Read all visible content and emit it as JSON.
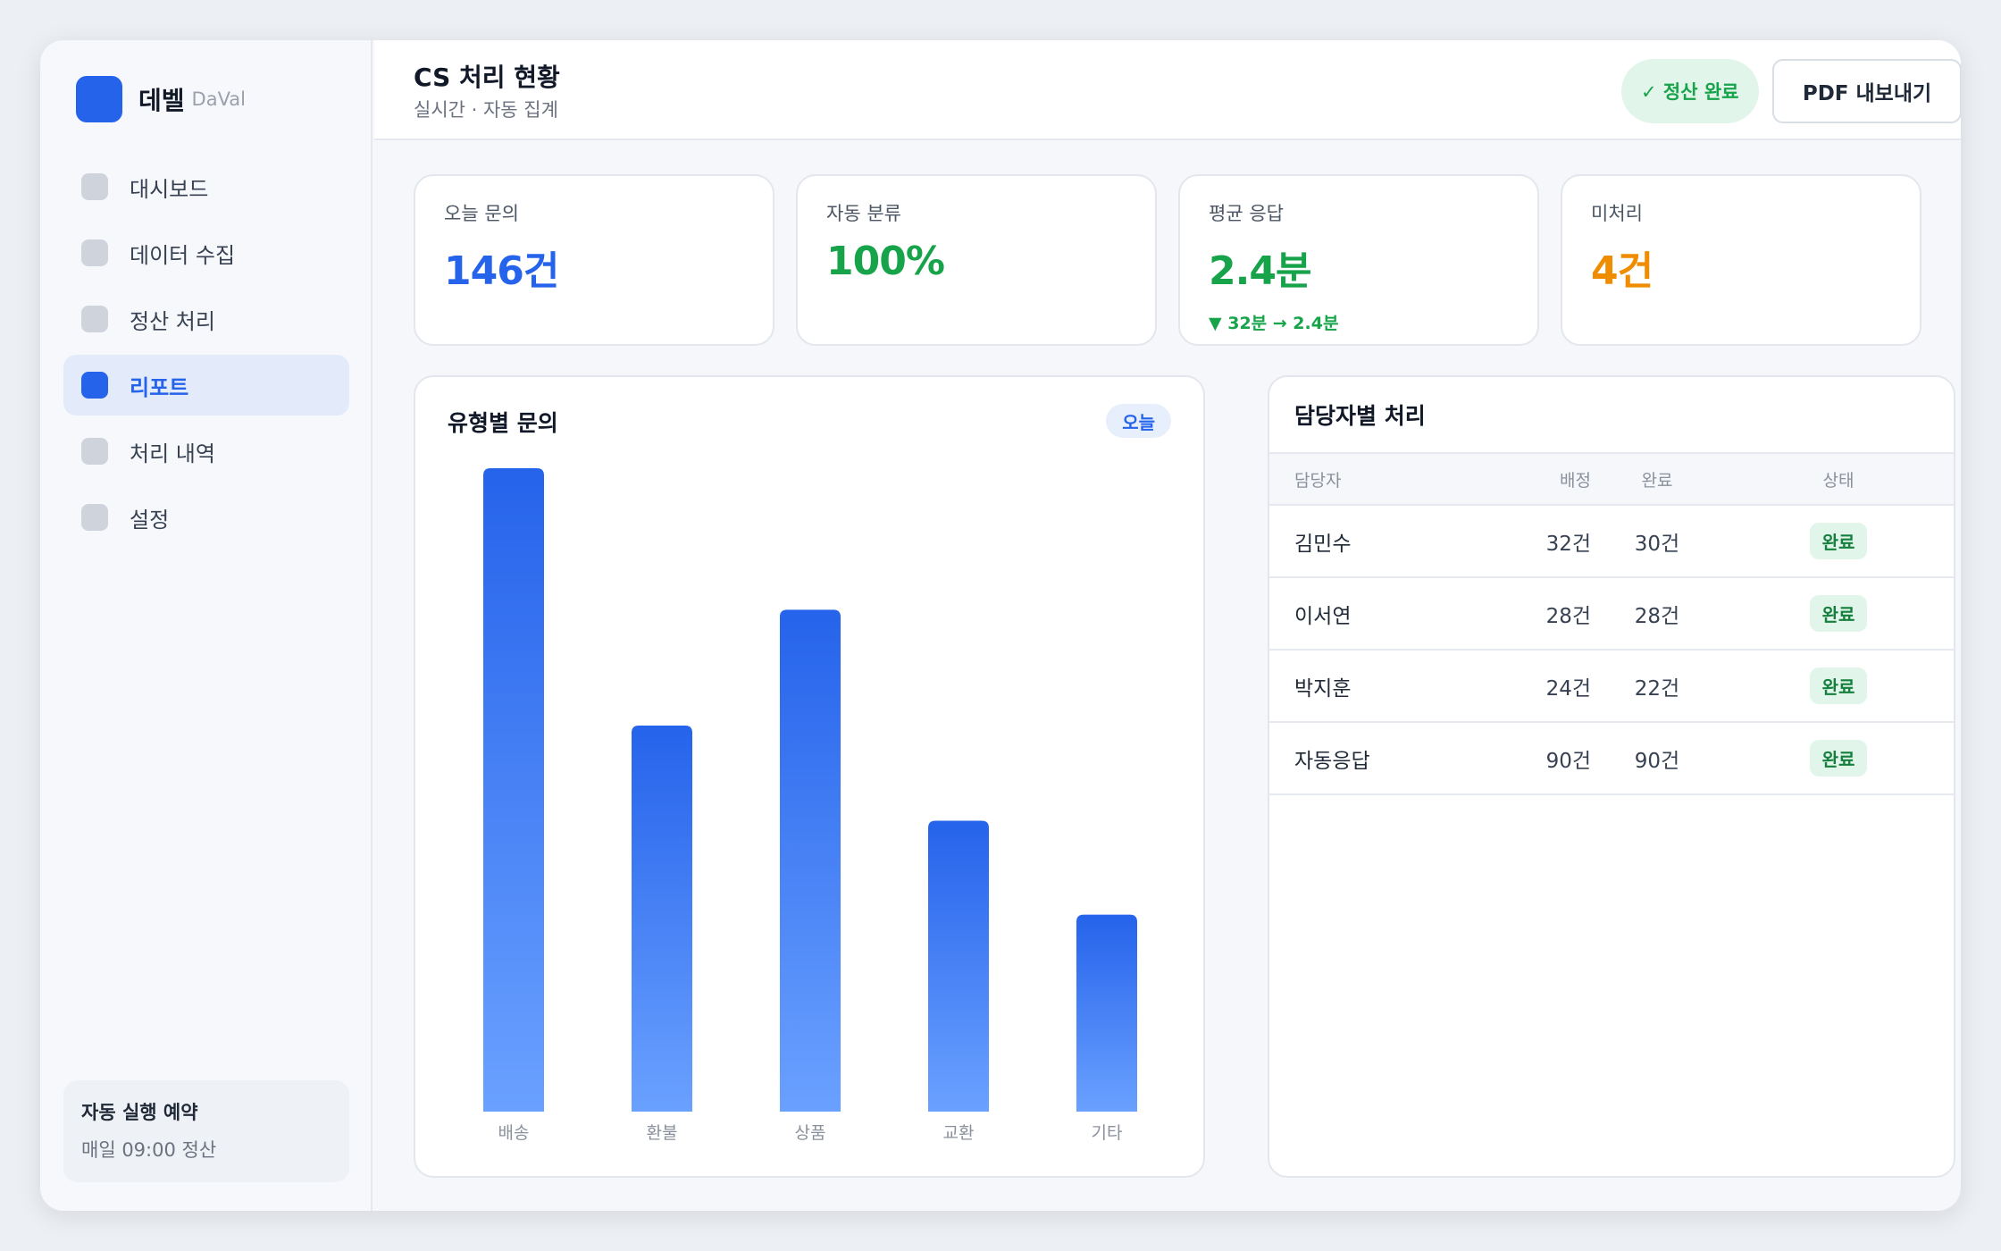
{
  "brand": {
    "name": "데벨",
    "sub": "DaVal"
  },
  "sidebar": {
    "items": [
      {
        "label": "대시보드",
        "active": false
      },
      {
        "label": "데이터 수집",
        "active": false
      },
      {
        "label": "정산 처리",
        "active": false
      },
      {
        "label": "리포트",
        "active": true
      },
      {
        "label": "처리 내역",
        "active": false
      },
      {
        "label": "설정",
        "active": false
      }
    ],
    "schedule": {
      "title": "자동 실행 예약",
      "desc": "매일 09:00 정산"
    }
  },
  "header": {
    "title": "CS 처리 현황",
    "subtitle": "실시간 · 자동 집계",
    "status": "✓ 정산 완료",
    "export_label": "PDF 내보내기"
  },
  "kpis": [
    {
      "label": "오늘 문의",
      "value": "146건",
      "color": "#2563eb",
      "note": ""
    },
    {
      "label": "자동 분류",
      "value": "100%",
      "color": "#16a34a",
      "note": ""
    },
    {
      "label": "평균 응답",
      "value": "2.4분",
      "color": "#16a34a",
      "note": "▼ 32분 → 2.4분"
    },
    {
      "label": "미처리",
      "value": "4건",
      "color": "#f08c00",
      "note": ""
    }
  ],
  "chart_card": {
    "title": "유형별 문의",
    "badge": "오늘"
  },
  "chart_data": {
    "type": "bar",
    "categories": [
      "배송",
      "환불",
      "상품",
      "교환",
      "기타"
    ],
    "values": [
      50,
      30,
      39,
      22.6,
      15.3
    ],
    "ylim": [
      0,
      50
    ],
    "grid": false,
    "colors": {
      "top": "#2563eb",
      "bottom": "#6aa1ff"
    }
  },
  "table": {
    "title": "담당자별 처리",
    "columns": [
      "담당자",
      "배정",
      "완료",
      "상태"
    ],
    "rows": [
      {
        "name": "김민수",
        "assigned": "32건",
        "done": "30건",
        "state": "완료"
      },
      {
        "name": "이서연",
        "assigned": "28건",
        "done": "28건",
        "state": "완료"
      },
      {
        "name": "박지훈",
        "assigned": "24건",
        "done": "22건",
        "state": "완료"
      },
      {
        "name": "자동응답",
        "assigned": "90건",
        "done": "90건",
        "state": "완료"
      }
    ]
  }
}
